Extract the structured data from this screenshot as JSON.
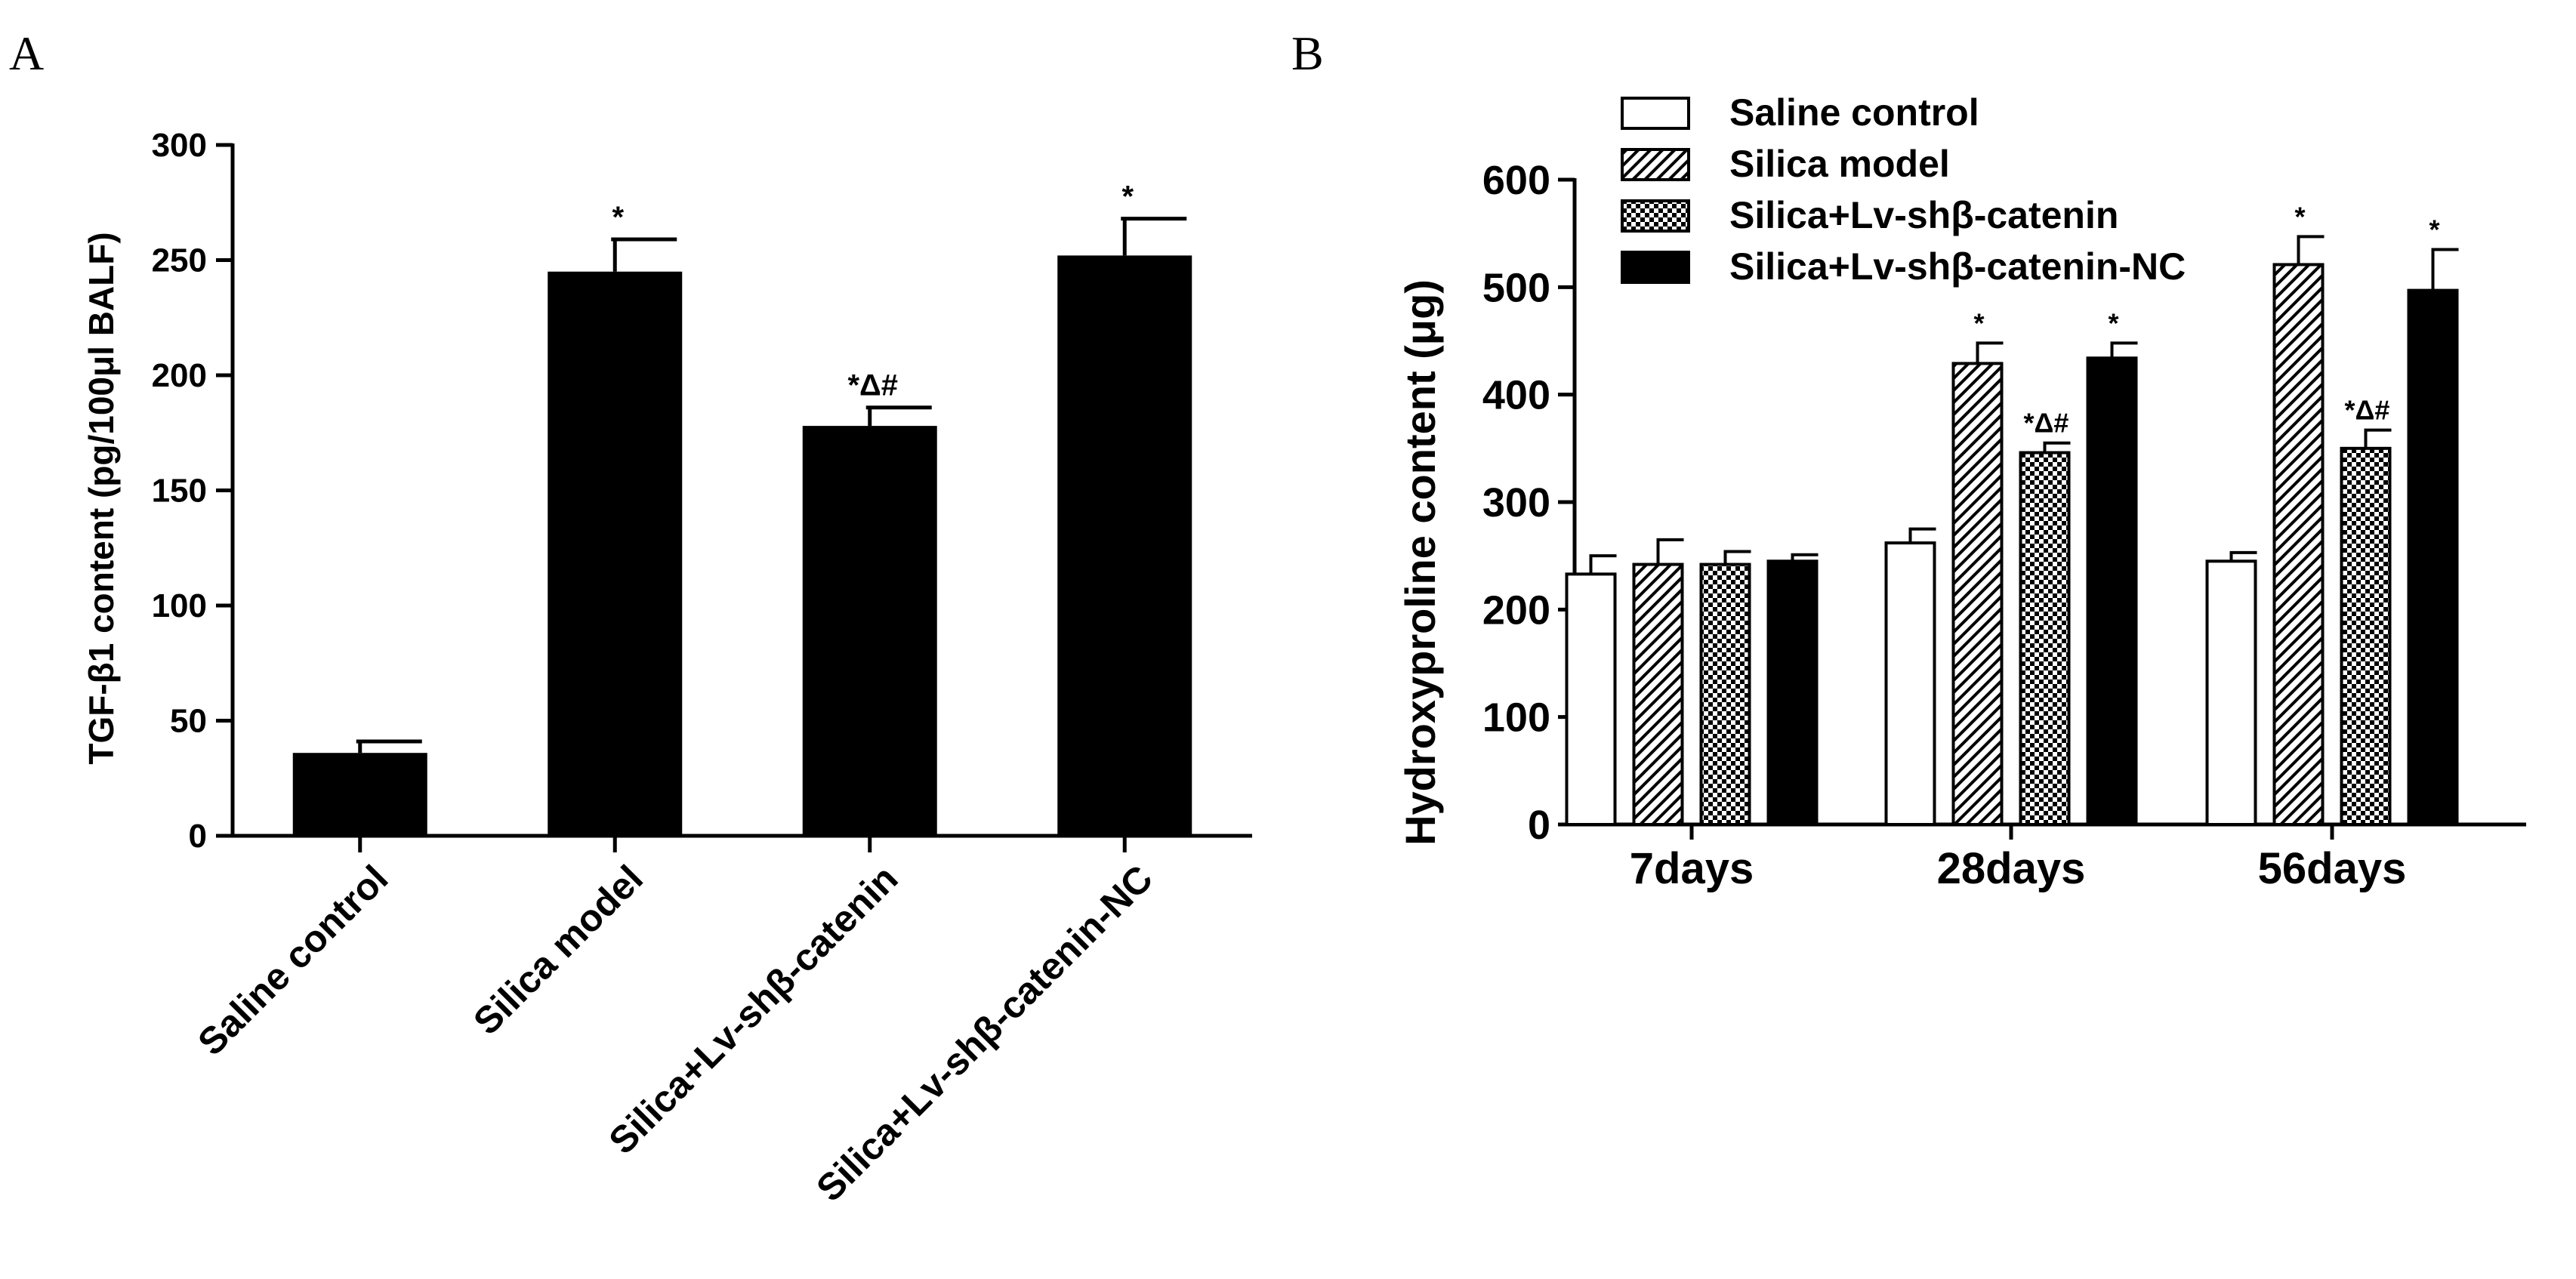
{
  "chart_data": [
    {
      "type": "bar",
      "panel_label": "A",
      "ylabel": "TGF-β1 content (pg/100μl BALF)",
      "xlabel": "",
      "ylim": [
        0,
        300
      ],
      "yticks": [
        "0",
        "50",
        "100",
        "150",
        "200",
        "250",
        "300"
      ],
      "categories": [
        "Saline control",
        "Silica model",
        "Silica+Lv-shβ-catenin",
        "Silica+Lv-shβ-catenin-NC"
      ],
      "values": [
        36,
        245,
        178,
        252
      ],
      "errors": [
        5,
        14,
        8,
        16
      ],
      "annotations": [
        "",
        "*",
        "*Δ#",
        "*"
      ],
      "bar_color": "#000000"
    },
    {
      "type": "bar",
      "panel_label": "B",
      "ylabel": "Hydroxyproline content (μg)",
      "xlabel": "",
      "ylim": [
        0,
        600
      ],
      "yticks": [
        "0",
        "100",
        "200",
        "300",
        "400",
        "500",
        "600"
      ],
      "categories": [
        "7days",
        "28days",
        "56days"
      ],
      "legend_position": "top-left",
      "series": [
        {
          "name": "Saline control",
          "pattern": "open",
          "values": [
            233,
            262,
            245
          ],
          "errors": [
            17,
            13,
            8
          ],
          "annotations": [
            "",
            "",
            ""
          ]
        },
        {
          "name": "Silica model",
          "pattern": "hatch",
          "values": [
            242,
            429,
            521
          ],
          "errors": [
            23,
            19,
            26
          ],
          "annotations": [
            "",
            "*",
            "*"
          ]
        },
        {
          "name": "Silica+Lv-shβ-catenin",
          "pattern": "checker",
          "values": [
            242,
            346,
            350
          ],
          "errors": [
            12,
            9,
            17
          ],
          "annotations": [
            "",
            "*Δ#",
            "*Δ#"
          ]
        },
        {
          "name": "Silica+Lv-shβ-catenin-NC",
          "pattern": "solid",
          "values": [
            245,
            434,
            497
          ],
          "errors": [
            6,
            14,
            38
          ],
          "annotations": [
            "",
            "*",
            "*"
          ]
        }
      ]
    }
  ]
}
